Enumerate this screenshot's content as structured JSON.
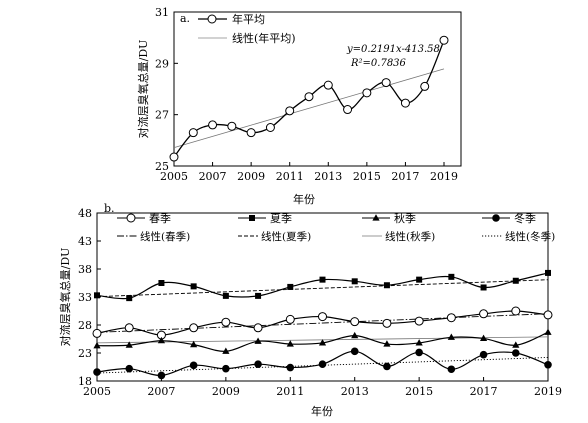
{
  "chart_data": [
    {
      "type": "line",
      "panel_label": "a.",
      "ylabel": "对流层臭氧总量/DU",
      "xlabel": "年份",
      "xlim": [
        2005,
        2019
      ],
      "ylim": [
        25,
        31
      ],
      "xticks": [
        2005,
        2007,
        2009,
        2011,
        2013,
        2015,
        2017,
        2019
      ],
      "yticks": [
        25,
        27,
        29,
        31
      ],
      "legend_position": "top-left",
      "x": [
        2005,
        2006,
        2007,
        2008,
        2009,
        2010,
        2011,
        2012,
        2013,
        2014,
        2015,
        2016,
        2017,
        2018,
        2019
      ],
      "series": [
        {
          "name": "年平均",
          "marker": "open-circle",
          "values": [
            25.35,
            26.3,
            26.6,
            26.55,
            26.3,
            26.5,
            27.15,
            27.7,
            28.15,
            27.2,
            27.85,
            28.25,
            27.45,
            28.1,
            29.9
          ]
        }
      ],
      "trendlines": [
        {
          "name": "线性(年平均)",
          "slope": 0.2191,
          "intercept": -413.58,
          "style": "solid-thin"
        }
      ],
      "annotations": {
        "equation": "y=0.2191x-413.58",
        "r2_label": "R²=0.7836"
      }
    },
    {
      "type": "line",
      "panel_label": "b.",
      "ylabel": "对流层臭氧总量/DU",
      "xlabel": "年份",
      "xlim": [
        2005,
        2019
      ],
      "ylim": [
        18,
        48
      ],
      "xticks": [
        2005,
        2007,
        2009,
        2011,
        2013,
        2015,
        2017,
        2019
      ],
      "yticks": [
        18,
        23,
        28,
        33,
        38,
        43,
        48
      ],
      "legend_position": "top",
      "x": [
        2005,
        2006,
        2007,
        2008,
        2009,
        2010,
        2011,
        2012,
        2013,
        2014,
        2015,
        2016,
        2017,
        2018,
        2019
      ],
      "series": [
        {
          "name": "春季",
          "marker": "open-circle",
          "values": [
            26.5,
            27.5,
            26.2,
            27.5,
            28.5,
            27.5,
            29.0,
            29.5,
            28.6,
            28.3,
            28.7,
            29.3,
            30.0,
            30.5,
            29.8
          ]
        },
        {
          "name": "夏季",
          "marker": "filled-square",
          "values": [
            33.3,
            32.8,
            35.5,
            34.9,
            33.2,
            33.2,
            34.8,
            36.1,
            35.8,
            35.1,
            36.1,
            36.6,
            34.7,
            35.9,
            37.3
          ]
        },
        {
          "name": "秋季",
          "marker": "filled-triangle",
          "values": [
            24.3,
            24.4,
            25.2,
            24.5,
            23.3,
            25.1,
            24.6,
            24.8,
            26.1,
            24.6,
            24.8,
            25.8,
            25.6,
            24.4,
            26.7
          ]
        },
        {
          "name": "冬季",
          "marker": "filled-circle",
          "values": [
            19.6,
            20.2,
            19.0,
            20.8,
            20.2,
            21.0,
            20.4,
            21.0,
            23.3,
            20.6,
            23.1,
            20.1,
            22.7,
            23.0,
            20.9
          ]
        }
      ],
      "trendlines": [
        {
          "name": "线性(春季)",
          "slope": 0.2379,
          "intercept": -450.3,
          "style": "dash-dot"
        },
        {
          "name": "线性(夏季)",
          "slope": 0.2161,
          "intercept": -400.22,
          "style": "dashed"
        },
        {
          "name": "线性(秋季)",
          "slope": 0.0764,
          "intercept": -128.37,
          "style": "solid-thin"
        },
        {
          "name": "线性(冬季)",
          "slope": 0.1986,
          "intercept": -378.77,
          "style": "dotted"
        }
      ]
    }
  ]
}
